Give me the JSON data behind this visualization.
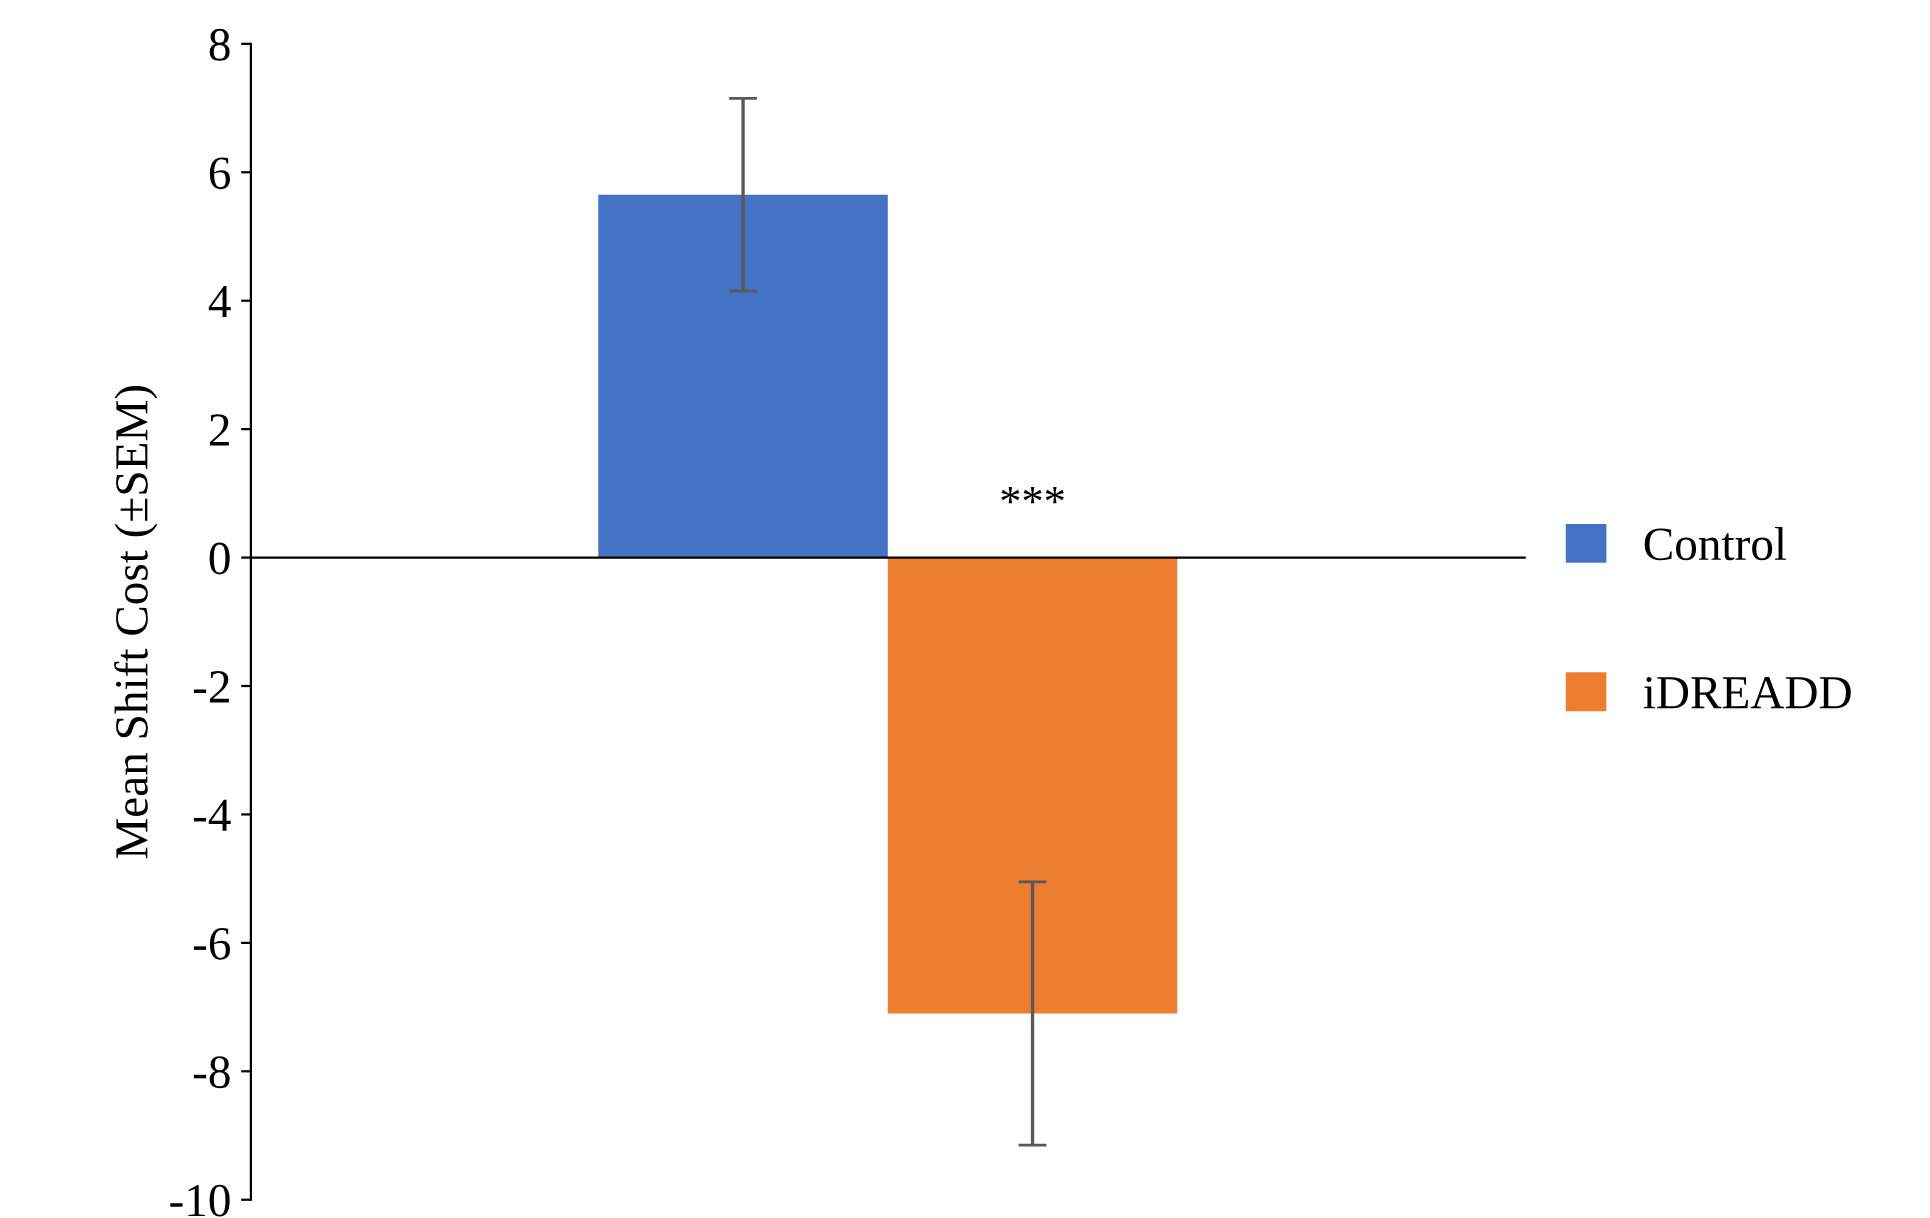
{
  "chart_data": {
    "type": "bar",
    "ylabel": "Mean Shift Cost (±SEM)",
    "categories": [
      null
    ],
    "series": [
      {
        "name": "Control",
        "color": "#4472c4",
        "values": [
          5.65
        ],
        "errors": [
          1.5
        ]
      },
      {
        "name": "iDREADD",
        "color": "#ed7d31",
        "values": [
          -7.1
        ],
        "errors": [
          2.05
        ]
      }
    ],
    "ylim": [
      -10,
      8
    ],
    "yticks": [
      -10,
      -8,
      -6,
      -4,
      -2,
      0,
      2,
      4,
      6,
      8
    ],
    "legend": "right",
    "annotations": [
      "***"
    ]
  }
}
